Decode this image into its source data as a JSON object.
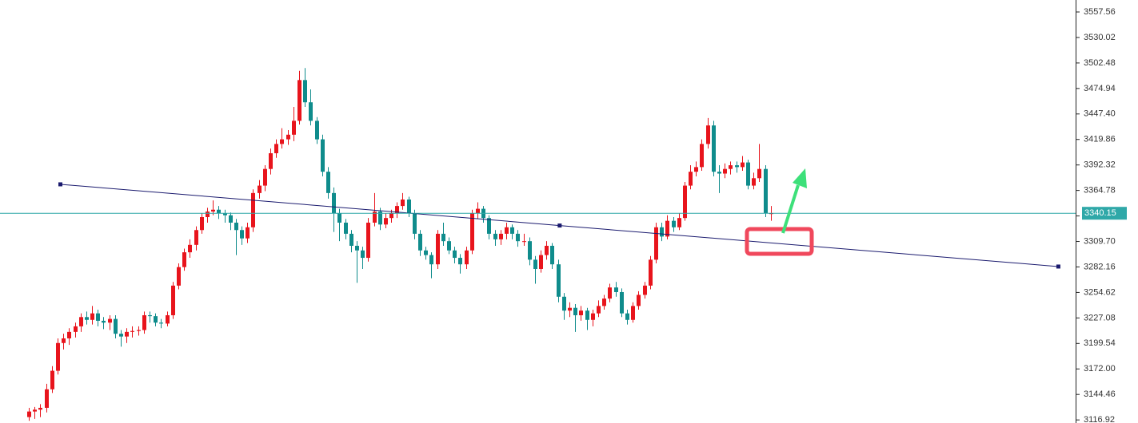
{
  "chart_data": {
    "type": "candlestick",
    "up_color": "#e8141c",
    "down_color": "#0f8c8c",
    "xlim": [
      -5,
      182
    ],
    "ylim": [
      3113.6,
      3570.5
    ],
    "yticks": [
      3116.92,
      3144.46,
      {
        "value": 3172,
        "label": "3172.00"
      },
      3199.54,
      3227.08,
      3254.62,
      3282.16,
      {
        "value": 3309.7,
        "label": "3309.70"
      },
      3337.24,
      3364.78,
      3392.32,
      3419.86,
      {
        "value": 3447.4,
        "label": "3447.40"
      },
      3474.94,
      3502.48,
      3530.02,
      3557.56
    ],
    "current_price": {
      "value": 3340.15,
      "color": "#2fa8a8"
    },
    "trendline": {
      "color": "#1a1a6e",
      "x": [
        5.5,
        92.3,
        179
      ],
      "y": [
        3371.4,
        3326.9,
        3282.6
      ]
    },
    "candles": [
      [
        3120,
        3130,
        3116,
        3126
      ],
      [
        3126,
        3131,
        3118,
        3128
      ],
      [
        3128,
        3134,
        3120,
        3130
      ],
      [
        3130,
        3156,
        3125,
        3150
      ],
      [
        3150,
        3175,
        3146,
        3170
      ],
      [
        3170,
        3205,
        3166,
        3200
      ],
      [
        3200,
        3210,
        3193,
        3205
      ],
      [
        3205,
        3216,
        3198,
        3212
      ],
      [
        3212,
        3222,
        3206,
        3218
      ],
      [
        3218,
        3232,
        3212,
        3228
      ],
      [
        3228,
        3234,
        3220,
        3225
      ],
      [
        3225,
        3240,
        3220,
        3232
      ],
      [
        3232,
        3236,
        3218,
        3224
      ],
      [
        3224,
        3228,
        3215,
        3222
      ],
      [
        3222,
        3230,
        3214,
        3226
      ],
      [
        3226,
        3230,
        3205,
        3210
      ],
      [
        3210,
        3214,
        3196,
        3207
      ],
      [
        3207,
        3216,
        3200,
        3212
      ],
      [
        3212,
        3218,
        3206,
        3213
      ],
      [
        3213,
        3218,
        3208,
        3214
      ],
      [
        3214,
        3234,
        3210,
        3230
      ],
      [
        3230,
        3234,
        3222,
        3229
      ],
      [
        3229,
        3232,
        3218,
        3222
      ],
      [
        3222,
        3226,
        3216,
        3221
      ],
      [
        3221,
        3234,
        3218,
        3230
      ],
      [
        3230,
        3266,
        3226,
        3262
      ],
      [
        3262,
        3286,
        3258,
        3282
      ],
      [
        3282,
        3302,
        3278,
        3298
      ],
      [
        3298,
        3312,
        3292,
        3306
      ],
      [
        3306,
        3326,
        3300,
        3322
      ],
      [
        3322,
        3340,
        3318,
        3336
      ],
      [
        3336,
        3346,
        3330,
        3342
      ],
      [
        3342,
        3354,
        3338,
        3344
      ],
      [
        3344,
        3348,
        3334,
        3340
      ],
      [
        3340,
        3344,
        3330,
        3338
      ],
      [
        3338,
        3341,
        3322,
        3330
      ],
      [
        3330,
        3334,
        3295,
        3322
      ],
      [
        3322,
        3326,
        3306,
        3313
      ],
      [
        3313,
        3330,
        3308,
        3325
      ],
      [
        3325,
        3366,
        3320,
        3362
      ],
      [
        3362,
        3376,
        3356,
        3370
      ],
      [
        3370,
        3392,
        3364,
        3388
      ],
      [
        3388,
        3410,
        3382,
        3405
      ],
      [
        3405,
        3420,
        3400,
        3415
      ],
      [
        3415,
        3432,
        3410,
        3420
      ],
      [
        3420,
        3430,
        3414,
        3425
      ],
      [
        3425,
        3455,
        3418,
        3440
      ],
      [
        3440,
        3494,
        3436,
        3484
      ],
      [
        3484,
        3497,
        3455,
        3460
      ],
      [
        3460,
        3474,
        3435,
        3440
      ],
      [
        3440,
        3444,
        3415,
        3420
      ],
      [
        3420,
        3425,
        3380,
        3385
      ],
      [
        3385,
        3390,
        3356,
        3362
      ],
      [
        3362,
        3368,
        3320,
        3340
      ],
      [
        3340,
        3345,
        3310,
        3330
      ],
      [
        3330,
        3334,
        3312,
        3318
      ],
      [
        3318,
        3322,
        3298,
        3305
      ],
      [
        3305,
        3310,
        3265,
        3300
      ],
      [
        3300,
        3304,
        3280,
        3292
      ],
      [
        3292,
        3335,
        3288,
        3330
      ],
      [
        3330,
        3362,
        3326,
        3342
      ],
      [
        3342,
        3346,
        3322,
        3328
      ],
      [
        3328,
        3340,
        3324,
        3335
      ],
      [
        3335,
        3344,
        3330,
        3340
      ],
      [
        3340,
        3352,
        3335,
        3348
      ],
      [
        3348,
        3362,
        3344,
        3355
      ],
      [
        3355,
        3358,
        3336,
        3340
      ],
      [
        3340,
        3344,
        3312,
        3318
      ],
      [
        3318,
        3322,
        3294,
        3300
      ],
      [
        3300,
        3304,
        3290,
        3295
      ],
      [
        3295,
        3298,
        3270,
        3285
      ],
      [
        3285,
        3322,
        3280,
        3318
      ],
      [
        3318,
        3330,
        3305,
        3310
      ],
      [
        3310,
        3314,
        3296,
        3300
      ],
      [
        3300,
        3304,
        3286,
        3292
      ],
      [
        3292,
        3296,
        3275,
        3285
      ],
      [
        3285,
        3304,
        3280,
        3300
      ],
      [
        3300,
        3344,
        3296,
        3340
      ],
      [
        3340,
        3352,
        3334,
        3345
      ],
      [
        3345,
        3348,
        3330,
        3335
      ],
      [
        3335,
        3338,
        3312,
        3318
      ],
      [
        3318,
        3322,
        3305,
        3312
      ],
      [
        3312,
        3322,
        3306,
        3318
      ],
      [
        3318,
        3330,
        3312,
        3325
      ],
      [
        3325,
        3328,
        3312,
        3318
      ],
      [
        3318,
        3322,
        3304,
        3310
      ],
      [
        3310,
        3318,
        3305,
        3310
      ],
      [
        3310,
        3314,
        3284,
        3290
      ],
      [
        3290,
        3294,
        3264,
        3280
      ],
      [
        3280,
        3300,
        3276,
        3295
      ],
      [
        3295,
        3310,
        3290,
        3305
      ],
      [
        3305,
        3308,
        3280,
        3285
      ],
      [
        3285,
        3290,
        3244,
        3250
      ],
      [
        3250,
        3254,
        3225,
        3235
      ],
      [
        3235,
        3244,
        3228,
        3238
      ],
      [
        3238,
        3242,
        3212,
        3230
      ],
      [
        3230,
        3240,
        3224,
        3235
      ],
      [
        3235,
        3238,
        3214,
        3225
      ],
      [
        3225,
        3236,
        3218,
        3232
      ],
      [
        3232,
        3246,
        3228,
        3240
      ],
      [
        3240,
        3252,
        3236,
        3248
      ],
      [
        3248,
        3264,
        3244,
        3260
      ],
      [
        3260,
        3266,
        3250,
        3255
      ],
      [
        3255,
        3259,
        3228,
        3232
      ],
      [
        3232,
        3236,
        3220,
        3225
      ],
      [
        3225,
        3244,
        3222,
        3240
      ],
      [
        3240,
        3256,
        3236,
        3252
      ],
      [
        3252,
        3266,
        3248,
        3262
      ],
      [
        3262,
        3294,
        3258,
        3290
      ],
      [
        3290,
        3330,
        3286,
        3325
      ],
      [
        3325,
        3330,
        3310,
        3315
      ],
      [
        3315,
        3338,
        3312,
        3332
      ],
      [
        3332,
        3336,
        3320,
        3325
      ],
      [
        3325,
        3340,
        3322,
        3335
      ],
      [
        3335,
        3374,
        3332,
        3370
      ],
      [
        3370,
        3392,
        3366,
        3385
      ],
      [
        3385,
        3396,
        3380,
        3390
      ],
      [
        3390,
        3420,
        3386,
        3415
      ],
      [
        3415,
        3443,
        3410,
        3435
      ],
      [
        3435,
        3440,
        3380,
        3385
      ],
      [
        3385,
        3392,
        3362,
        3383
      ],
      [
        3383,
        3394,
        3378,
        3388
      ],
      [
        3388,
        3396,
        3382,
        3392
      ],
      [
        3392,
        3396,
        3384,
        3390
      ],
      [
        3390,
        3402,
        3386,
        3395
      ],
      [
        3395,
        3398,
        3366,
        3370
      ],
      [
        3370,
        3384,
        3366,
        3378
      ],
      [
        3378,
        3415,
        3374,
        3388
      ],
      [
        3388,
        3392,
        3336,
        3340
      ],
      [
        3340,
        3348,
        3332,
        3340.15
      ]
    ]
  }
}
